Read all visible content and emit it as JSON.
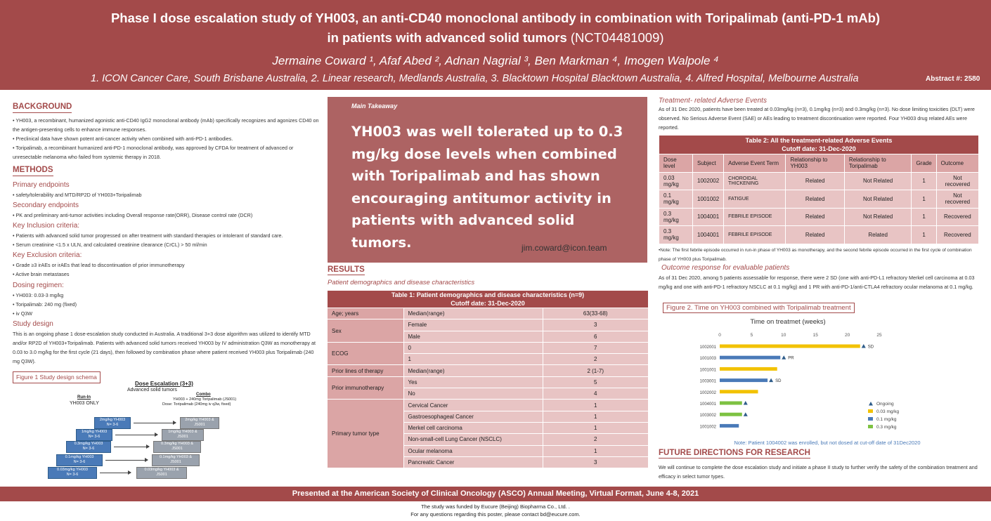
{
  "header": {
    "title_line1": "Phase I  dose escalation study of YH003, an anti-CD40 monoclonal antibody in combination with Toripalimab (anti-PD-1 mAb)",
    "title_line2": "in patients with advanced solid tumors",
    "title_nct": " (NCT04481009)",
    "authors": "Jermaine Coward ¹, Afaf Abed ², Adnan Nagrial ³, Ben Markman ⁴, Imogen Walpole ⁴",
    "affiliations": "1. ICON Cancer Care, South Brisbane Australia, 2. Linear research, Medlands Australia, 3. Blacktown Hospital Blacktown Australia, 4. Alfred Hospital, Melbourne Australia",
    "abstract": "Abstract #: 2580"
  },
  "background": {
    "heading": "BACKGROUND",
    "items": [
      "• YH003, a recombinant, humanized agonistic anti-CD40 IgG2 monoclonal antibody (mAb) specifically recognizes and agonizes CD40 on the antigen-presenting cells to enhance immune responses.",
      "• Preclinical data have shown potent anti-cancer activity when combined with anti-PD-1 antibodies.",
      "• Toripalimab, a recombinant humanized anti-PD-1 monoclonal antibody, was approved by CFDA for treatment of advanced or unresectable melanoma who failed from systemic therapy in 2018."
    ]
  },
  "methods": {
    "heading": "METHODS",
    "primary_h": "Primary endpoints",
    "primary": "• safety/tolerability and MTD/RP2D of YH003+Toripalimab",
    "secondary_h": "Secondary endpoints",
    "secondary": "• PK and preliminary anti-tumor activities including Overall response rate(ORR), Disease control rate (DCR)",
    "inclusion_h": "Key Inclusion criteria:",
    "inclusion": [
      "• Patients with advanced solid tumor progressed on after treatment with standard therapies or intolerant of standard care.",
      "• Serum creatinine <1.5 x ULN, and calculated creatinine clearance (CrCL) > 50 ml/min"
    ],
    "exclusion_h": "Key Exclusion criteria:",
    "exclusion": [
      "• Grade ≥3 irAEs or irAEs that lead to discontinuation of prior immunotherapy",
      "• Active brain metastases"
    ],
    "dosing_h": "Dosing regimen:",
    "dosing": [
      "• YH003: 0.03-3 mg/kg",
      "• Toripalimab: 240 mg (fixed)",
      "• iv Q3W"
    ],
    "design_h": "Study design",
    "design": "This is an ongoing phase 1 dose-escalation study conducted in Australia. A traditional 3+3 dose algorithm was utilized to identify MTD and/or RP2D of YH003+Toripalimab. Patients with advanced solid tumors received YH003 by IV administration Q3W as monotherapy at 0.03 to 3.0 mg/kg for the first cycle (21 days), then followed by combination phase where patient received YH003 plus Toripalimab (240 mg Q3W).",
    "figure1_title": "Figure 1 Study design schema"
  },
  "scheme": {
    "title": "Dose Escalation (3+3)",
    "subtitle": "Advanced solid tumors",
    "runin_h": "Run-In",
    "runin": "YH003 ONLY",
    "combo_h": "Combo",
    "combo_l1": "YH003 + 240mg Toripalimab (JS001)",
    "combo_l2": "Dose: Toripalimab (240mg iv q3w, fixed)",
    "levels": [
      {
        "left": "2mg/kg YH003",
        "n": "N= 3-6",
        "right": "2mg/kg YH003 &",
        "right2": "JS001"
      },
      {
        "left": "1mg/kg YH003",
        "n": "N= 3-6",
        "right": "1mg/kg YH003 &",
        "right2": "JS001"
      },
      {
        "left": "0.3mg/kg YH003",
        "n": "N= 3-6",
        "right": "0.3mg/kg YH003 &",
        "right2": "JS001"
      },
      {
        "left": "0.1mg/kg YH003",
        "n": "N= 3-6",
        "right": "0.1mg/kg YH003 &",
        "right2": "JS001"
      },
      {
        "left": "0.03mg/kg YH003",
        "n": "N= 3-6",
        "right": "0.03mg/kg YH003 &",
        "right2": "JS001"
      }
    ]
  },
  "takeaway": {
    "label": "Main Takeaway",
    "text": "YH003 was well tolerated up to 0.3 mg/kg dose levels when combined with Toripalimab and has shown encouraging antitumor activity in patients with advanced solid tumors.",
    "email": "jim.coward@icon.team"
  },
  "results": {
    "heading": "RESULTS",
    "subheading": "Patient demographics and disease characteristics",
    "table1_title": "Table 1: Patient demographics and disease characteristics (n=9)",
    "table1_cutoff": "Cutoff date: 31-Dec-2020",
    "table1": [
      {
        "group": "Age; years",
        "rows": [
          [
            "Median(range)",
            "63(33-68)"
          ]
        ]
      },
      {
        "group": "Sex",
        "rows": [
          [
            "Female",
            "3"
          ],
          [
            "Male",
            "6"
          ]
        ]
      },
      {
        "group": "ECOG",
        "rows": [
          [
            "0",
            "7"
          ],
          [
            "1",
            "2"
          ]
        ]
      },
      {
        "group": "Prior lines of therapy",
        "rows": [
          [
            "Median(range)",
            "2 (1-7)"
          ]
        ]
      },
      {
        "group": "Prior immunotherapy",
        "rows": [
          [
            "Yes",
            "5"
          ],
          [
            "No",
            "4"
          ]
        ]
      },
      {
        "group": "Primary tumor type",
        "rows": [
          [
            "Cervical Cancer",
            "1"
          ],
          [
            "Gastroesophageal Cancer",
            "1"
          ],
          [
            "Merkel cell carcinoma",
            "1"
          ],
          [
            "Non-small-cell Lung Cancer (NSCLC)",
            "2"
          ],
          [
            "Ocular melanoma",
            "1"
          ],
          [
            "Pancreatic Cancer",
            "3"
          ]
        ]
      }
    ]
  },
  "trae": {
    "heading": "Treatment- related Adverse Events",
    "text": "As of 31 Dec 2020, patients have been treated at 0.03mg/kg (n=3), 0.1mg/kg (n=3) and 0.3mg/kg (n=3). No dose limiting toxicities (DLT) were observed. No Serious Adverse Event (SAE) or AEs leading to treatment discontinuation were reported. Four YH003 drug related AEs were reported.",
    "table2_title": "Table 2: All the treatment-related Adverse Events",
    "table2_cutoff": "Cutoff date: 31-Dec-2020",
    "table2_headers": [
      "Dose level",
      "Subject",
      "Adverse Event Term",
      "Relationship to YH003",
      "Relationship to Toripalimab",
      "Grade",
      "Outcome"
    ],
    "table2_rows": [
      [
        "0.03 mg/kg",
        "1002002",
        "CHOROIDAL THICKENING",
        "Related",
        "Not Related",
        "1",
        "Not recovered"
      ],
      [
        "0.1 mg/kg",
        "1001002",
        "FATIGUE",
        "Related",
        "Not Related",
        "1",
        "Not recovered"
      ],
      [
        "0.3 mg/kg",
        "1004001",
        "FEBRILE EPISODE",
        "Related",
        "Not Related",
        "1",
        "Recovered"
      ],
      [
        "0.3 mg/kg",
        "1004001",
        "FEBRILE EPISODE",
        "Related",
        "Related",
        "1",
        "Recovered"
      ]
    ],
    "note": "•Note:  The first febrile episode occurred in run-in phase of YH003 as monotherapy, and the second febrile episode occurred in the first cycle of combination phase of YH003 plus Toripalimab."
  },
  "outcome": {
    "heading": "Outcome response for evaluable patients",
    "text": "As of 31 Dec 2020, among 5 patients assessable for response, there were 2 SD (one with anti-PD-L1 refractory Merkel cell carcinoma at 0.03 mg/kg and one with anti-PD-1 refractory NSCLC at 0.1 mg/kg) and 1 PR with anti-PD-1/anti-CTLA4 refractory ocular melanoma at 0.1 mg/kg.",
    "figure2_title": "Figure 2. Time on YH003  combined with  Toripalimab treatment",
    "chart_note": "Note: Patient 1004002 was enrolled, but not dosed at cut-off date of 31Dec2020"
  },
  "chart_data": {
    "type": "bar",
    "orientation": "horizontal",
    "title": "Time on treatmet (weeks)",
    "xlim": [
      0,
      25
    ],
    "xticks": [
      0,
      5,
      10,
      15,
      20,
      25
    ],
    "categories": [
      "1002001",
      "1001003",
      "1001001",
      "1003001",
      "1002002",
      "1004001",
      "1003002",
      "1001002"
    ],
    "values": [
      22,
      9.5,
      9,
      7.5,
      6,
      3.5,
      3.5,
      3
    ],
    "dose": [
      "0.03 mg/kg",
      "0.1 mg/kg",
      "0.03 mg/kg",
      "0.1 mg/kg",
      "0.03 mg/kg",
      "0.3 mg/kg",
      "0.3 mg/kg",
      "0.1 mg/kg"
    ],
    "ongoing": [
      true,
      true,
      false,
      true,
      false,
      true,
      true,
      false
    ],
    "responses": [
      "SD",
      "PR",
      "",
      "SD",
      "",
      "",
      "",
      ""
    ],
    "legend": [
      {
        "label": "Ongoing",
        "color": "#2e5c8a",
        "marker": "triangle"
      },
      {
        "label": "0.03 mg/kg",
        "color": "#f2c200"
      },
      {
        "label": "0.1 mg/kg",
        "color": "#4a7ab8"
      },
      {
        "label": "0.3 mg/kg",
        "color": "#7dc242"
      }
    ],
    "legend_position": "right"
  },
  "future": {
    "heading": "FUTURE DIRECTIONS FOR RESEARCH",
    "text": "We will continue to complete the dose escalation study and initiate a phase II study to further verify the safety of the combination treatment and efficacy in select tumor types."
  },
  "footer": {
    "presented": "Presented at the American Society of Clinical Oncology (ASCO) Annual Meeting, Virtual Format, June 4-8, 2021",
    "funded": "The study was funded by Eucure (Beijing) Biopharma Co., Ltd. .",
    "contact": "For any questions regarding this poster, please contact bd@eucure.com."
  },
  "colors": {
    "brand": "#a34a4a",
    "takeaway_bg": "#ad6363",
    "table_light": "#e8c4c4",
    "table_mid": "#dba5a5"
  }
}
